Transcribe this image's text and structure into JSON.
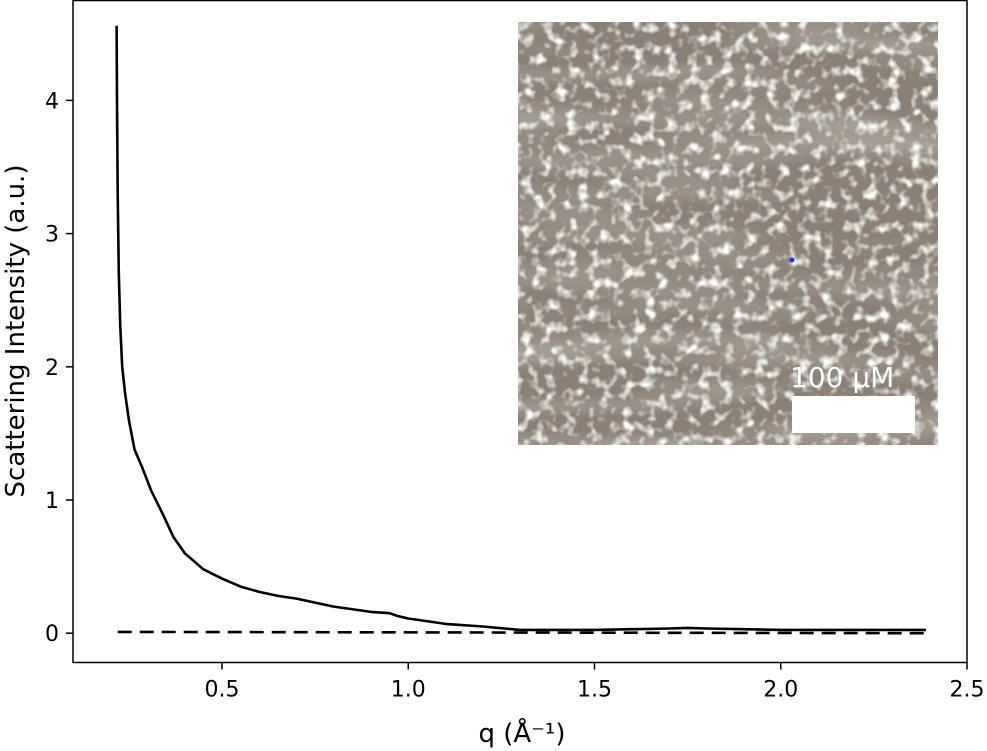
{
  "chart_data": {
    "type": "line",
    "xlabel": "q (Å⁻¹)",
    "ylabel": "Scattering Intensity (a.u.)",
    "xlim": [
      0.1,
      2.5
    ],
    "ylim": [
      -0.22,
      4.75
    ],
    "xticks": [
      {
        "value": 0.5,
        "label": "0.5"
      },
      {
        "value": 1.0,
        "label": "1.0"
      },
      {
        "value": 1.5,
        "label": "1.5"
      },
      {
        "value": 2.0,
        "label": "2.0"
      },
      {
        "value": 2.5,
        "label": "2.5"
      }
    ],
    "yticks": [
      {
        "value": 0,
        "label": "0"
      },
      {
        "value": 1,
        "label": "1"
      },
      {
        "value": 2,
        "label": "2"
      },
      {
        "value": 3,
        "label": "3"
      },
      {
        "value": 4,
        "label": "4"
      }
    ],
    "grid": false,
    "series": [
      {
        "style": "solid",
        "color": "#000000",
        "x": [
          0.217,
          0.218,
          0.22,
          0.223,
          0.227,
          0.232,
          0.24,
          0.25,
          0.265,
          0.285,
          0.31,
          0.34,
          0.37,
          0.4,
          0.45,
          0.5,
          0.55,
          0.6,
          0.65,
          0.7,
          0.8,
          0.9,
          0.95,
          0.97,
          1.0,
          1.1,
          1.2,
          1.3,
          1.4,
          1.5,
          1.6,
          1.7,
          1.75,
          1.8,
          1.9,
          2.0,
          2.1,
          2.2,
          2.3,
          2.39
        ],
        "y": [
          4.56,
          4.0,
          3.3,
          2.7,
          2.3,
          2.0,
          1.8,
          1.6,
          1.38,
          1.25,
          1.07,
          0.9,
          0.72,
          0.6,
          0.48,
          0.41,
          0.35,
          0.31,
          0.28,
          0.26,
          0.2,
          0.16,
          0.15,
          0.13,
          0.11,
          0.07,
          0.05,
          0.025,
          0.025,
          0.025,
          0.03,
          0.035,
          0.04,
          0.035,
          0.03,
          0.025,
          0.025,
          0.025,
          0.025,
          0.025
        ]
      },
      {
        "style": "dashed",
        "color": "#000000",
        "x": [
          0.22,
          2.39
        ],
        "y": [
          0.01,
          0.0
        ]
      }
    ],
    "inset": {
      "type": "micrograph",
      "scale_bar_label": "100 μM",
      "background_color": "#8a8076",
      "highlight_color": "#f4f1ea",
      "marker_color": "#2b2bff"
    }
  }
}
